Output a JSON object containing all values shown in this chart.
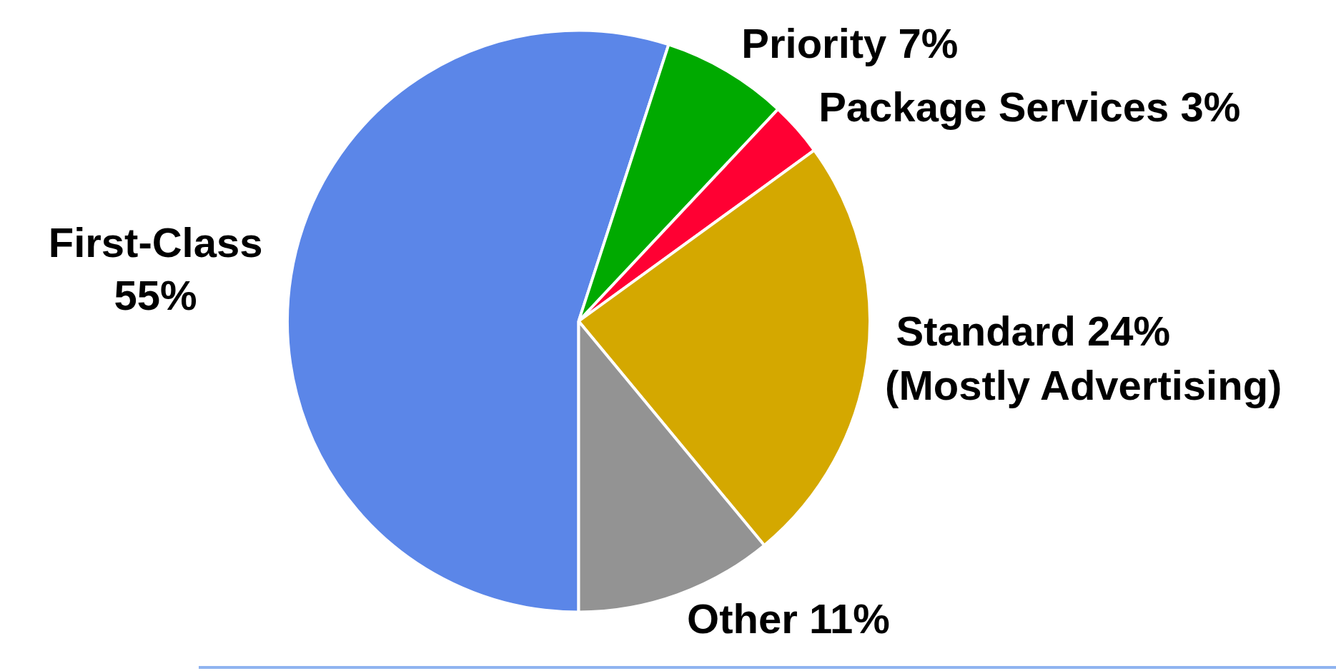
{
  "chart_data": {
    "type": "pie",
    "categories": [
      "First-Class",
      "Priority",
      "Package Services",
      "Standard",
      "Other"
    ],
    "values": [
      55,
      7,
      3,
      24,
      11
    ],
    "value_labels": [
      "55%",
      "7%",
      "3%",
      "24%",
      "11%"
    ],
    "colors": [
      "#5b86e8",
      "#00aa00",
      "#ff0033",
      "#d4a800",
      "#939393"
    ],
    "annotations": [
      {
        "text": "(Mostly Advertising)",
        "x": "Standard"
      }
    ],
    "legend": false
  }
}
